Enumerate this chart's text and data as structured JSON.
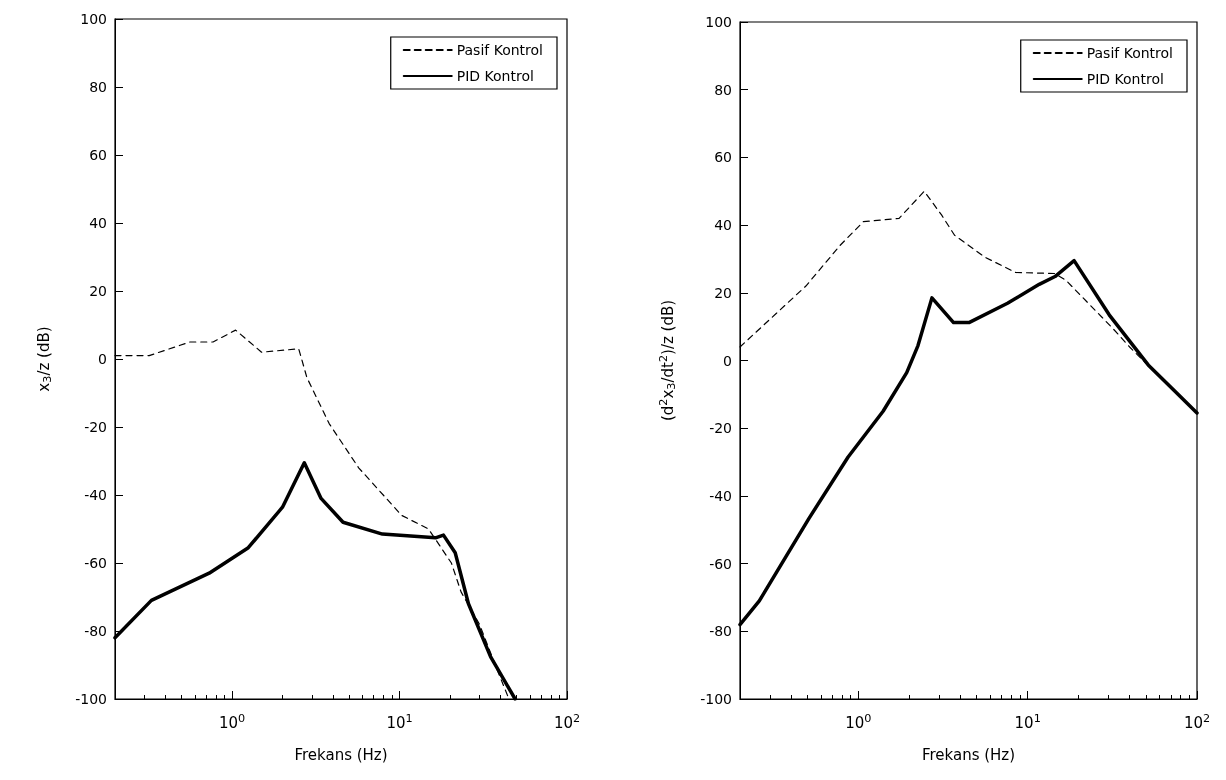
{
  "chart_data": [
    {
      "type": "line",
      "xlabel": "Frekans (Hz)",
      "ylabel": "x$_{3}$/z (dB)",
      "log": "x",
      "xlim": [
        0.2,
        100
      ],
      "ylim": [
        -100,
        100
      ],
      "xticks": [
        {
          "value": 1,
          "label": "10$^{0}$"
        },
        {
          "value": 10,
          "label": "10$^{1}$"
        },
        {
          "value": 100,
          "label": "10$^{2}$"
        }
      ],
      "yticks": [
        -100,
        -80,
        -60,
        -40,
        -20,
        0,
        20,
        40,
        60,
        80,
        100
      ],
      "grid": false,
      "legend": "top right",
      "marker": "none",
      "series": [
        {
          "name": "Pasif Kontrol",
          "color": "#000000",
          "line_style": "dashed",
          "x": [
            0.2,
            0.32,
            0.56,
            0.77,
            1.05,
            1.5,
            2.5,
            2.8,
            3.8,
            5.7,
            10.3,
            14.9,
            20.4,
            23.3,
            30,
            38,
            45
          ],
          "values": [
            1,
            1,
            5,
            5,
            8.5,
            2,
            3,
            -5.5,
            -19,
            -32,
            -46,
            -50,
            -60,
            -68.5,
            -78,
            -91,
            -100
          ]
        },
        {
          "name": "PID Kontrol",
          "color": "#000000",
          "line_style": "solid",
          "x": [
            0.2,
            0.33,
            0.73,
            1.25,
            2.0,
            2.7,
            3.4,
            4.6,
            7.9,
            16.4,
            18.3,
            21.5,
            25.8,
            35,
            38,
            49
          ],
          "values": [
            -82,
            -71,
            -63,
            -55.5,
            -43.6,
            -30.5,
            -41,
            -48,
            -51.5,
            -52.6,
            -51.8,
            -57,
            -72,
            -87.6,
            -90.6,
            -100
          ]
        }
      ]
    },
    {
      "type": "line",
      "xlabel": "Frekans (Hz)",
      "ylabel": "(d$^{2}$x$_{3}$/dt$^{2}$)/z (dB)",
      "log": "x",
      "xlim": [
        0.2,
        100
      ],
      "ylim": [
        -100,
        100
      ],
      "xticks": [
        {
          "value": 1,
          "label": "10$^{0}$"
        },
        {
          "value": 10,
          "label": "10$^{1}$"
        },
        {
          "value": 100,
          "label": "10$^{2}$"
        }
      ],
      "yticks": [
        -100,
        -80,
        -60,
        -40,
        -20,
        0,
        20,
        40,
        60,
        80,
        100
      ],
      "grid": false,
      "legend": "top right",
      "marker": "none",
      "series": [
        {
          "name": "Pasif Kontrol",
          "color": "#000000",
          "line_style": "dashed",
          "x": [
            0.2,
            0.49,
            0.78,
            1.07,
            1.74,
            2.45,
            3.1,
            3.7,
            5.6,
            8.5,
            14.5,
            16.9,
            31.8,
            40,
            51.5,
            74.6,
            100
          ],
          "values": [
            4,
            22,
            34,
            41,
            42,
            50,
            43,
            37,
            30.5,
            26,
            25.7,
            23.6,
            9.5,
            4,
            -1.5,
            -9.2,
            -15.5
          ]
        },
        {
          "name": "PID Kontrol",
          "color": "#000000",
          "line_style": "solid",
          "x": [
            0.2,
            0.26,
            0.51,
            0.87,
            1.4,
            1.93,
            2.25,
            2.72,
            3.65,
            4.5,
            7.6,
            11.7,
            14.5,
            18.8,
            30.3,
            51.5,
            74.6,
            100
          ],
          "values": [
            -78,
            -71,
            -46.7,
            -28.5,
            -15,
            -3.6,
            4.4,
            18.5,
            11.2,
            11.2,
            16.9,
            22.5,
            24.8,
            29.5,
            13.5,
            -1.3,
            -9.2,
            -15.5
          ]
        }
      ]
    }
  ]
}
